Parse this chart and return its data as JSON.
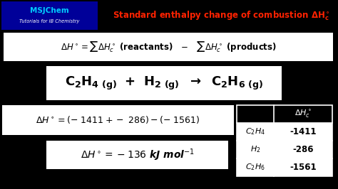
{
  "bg_color": "#000000",
  "header_bg": "#000080",
  "header_text": "MSJChem",
  "header_sub": "Tutorials for IB Chemistry",
  "title_color": "#ff2200",
  "white": "#ffffff",
  "black": "#000000",
  "table_rows": [
    [
      "C₂H₄",
      "-1411"
    ],
    [
      "H₂",
      "-286"
    ],
    [
      "C₂H₆",
      "-1561"
    ]
  ],
  "fig_w": 4.74,
  "fig_h": 2.66,
  "dpi": 100
}
